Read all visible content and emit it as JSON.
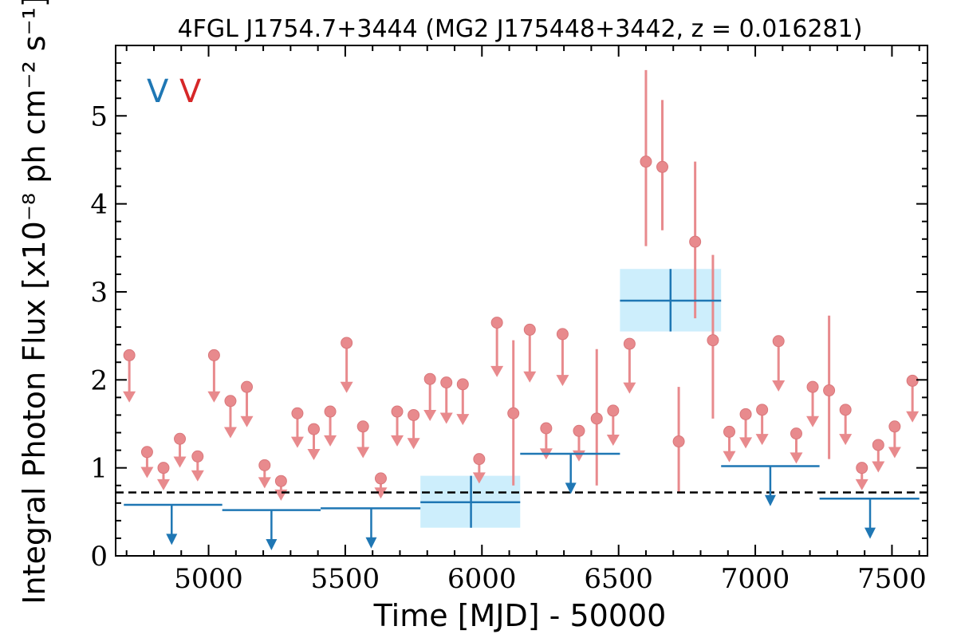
{
  "chart_data": {
    "type": "scatter",
    "title": "4FGL J1754.7+3444 (MG2 J175448+3442, z = 0.016281)",
    "xlabel": "Time [MJD] - 50000",
    "ylabel": "Integral Photon Flux [x10⁻⁸ ph cm⁻² s⁻¹]",
    "xlim": [
      4660,
      7630
    ],
    "ylim": [
      0,
      5.8
    ],
    "xticks": [
      5000,
      5500,
      6000,
      6500,
      7000,
      7500
    ],
    "yticks": [
      0,
      1,
      2,
      3,
      4,
      5
    ],
    "grid": false,
    "legend": {
      "placement": "top-left",
      "entries": [
        {
          "label": "V",
          "color": "#1f77b4"
        },
        {
          "label": "V",
          "color": "#d62728"
        }
      ]
    },
    "reference_line": {
      "y": 0.72,
      "style": "dashed",
      "color": "#000000"
    },
    "colors": {
      "yearly": "#1f77b4",
      "monthly": "#e88a8d",
      "band": "#cdeefc"
    },
    "series": [
      {
        "name": "",
        "color": "#1f77b4",
        "bins": [
          {
            "x": 4865,
            "x_lo": 4690,
            "x_hi": 5050,
            "y": 0.58,
            "upper_limit": true
          },
          {
            "x": 5230,
            "x_lo": 5050,
            "x_hi": 5410,
            "y": 0.52,
            "upper_limit": true
          },
          {
            "x": 5595,
            "x_lo": 5410,
            "x_hi": 5775,
            "y": 0.54,
            "upper_limit": true
          },
          {
            "x": 5960,
            "x_lo": 5775,
            "x_hi": 6140,
            "y": 0.61,
            "y_lo": 0.32,
            "y_hi": 0.91,
            "upper_limit": false
          },
          {
            "x": 6325,
            "x_lo": 6140,
            "x_hi": 6505,
            "y": 1.16,
            "upper_limit": true
          },
          {
            "x": 6690,
            "x_lo": 6505,
            "x_hi": 6875,
            "y": 2.9,
            "y_lo": 2.55,
            "y_hi": 3.26,
            "upper_limit": false
          },
          {
            "x": 7055,
            "x_lo": 6875,
            "x_hi": 7235,
            "y": 1.02,
            "upper_limit": true
          },
          {
            "x": 7420,
            "x_lo": 7235,
            "x_hi": 7600,
            "y": 0.65,
            "upper_limit": true
          }
        ]
      },
      {
        "name": "",
        "color": "#e88a8d",
        "points": [
          {
            "x": 4710,
            "y": 2.28,
            "upper_limit": true
          },
          {
            "x": 4775,
            "y": 1.18,
            "upper_limit": true
          },
          {
            "x": 4835,
            "y": 1.0,
            "upper_limit": true
          },
          {
            "x": 4895,
            "y": 1.33,
            "upper_limit": true
          },
          {
            "x": 4960,
            "y": 1.13,
            "upper_limit": true
          },
          {
            "x": 5020,
            "y": 2.28,
            "upper_limit": true
          },
          {
            "x": 5080,
            "y": 1.76,
            "upper_limit": true
          },
          {
            "x": 5140,
            "y": 1.92,
            "upper_limit": true
          },
          {
            "x": 5205,
            "y": 1.03,
            "upper_limit": true
          },
          {
            "x": 5265,
            "y": 0.85,
            "upper_limit": true
          },
          {
            "x": 5325,
            "y": 1.62,
            "upper_limit": true
          },
          {
            "x": 5385,
            "y": 1.44,
            "upper_limit": true
          },
          {
            "x": 5445,
            "y": 1.64,
            "upper_limit": true
          },
          {
            "x": 5505,
            "y": 2.42,
            "upper_limit": true
          },
          {
            "x": 5565,
            "y": 1.47,
            "upper_limit": true
          },
          {
            "x": 5630,
            "y": 0.88,
            "upper_limit": true
          },
          {
            "x": 5690,
            "y": 1.64,
            "upper_limit": true
          },
          {
            "x": 5750,
            "y": 1.6,
            "upper_limit": true
          },
          {
            "x": 5810,
            "y": 2.01,
            "upper_limit": true
          },
          {
            "x": 5870,
            "y": 1.97,
            "upper_limit": true
          },
          {
            "x": 5930,
            "y": 1.95,
            "upper_limit": true
          },
          {
            "x": 5990,
            "y": 1.1,
            "upper_limit": true
          },
          {
            "x": 6055,
            "y": 2.65,
            "upper_limit": true
          },
          {
            "x": 6115,
            "y": 1.62,
            "y_lo": 0.8,
            "y_hi": 2.45,
            "upper_limit": false
          },
          {
            "x": 6175,
            "y": 2.57,
            "upper_limit": true
          },
          {
            "x": 6235,
            "y": 1.45,
            "upper_limit": true
          },
          {
            "x": 6295,
            "y": 2.52,
            "upper_limit": true
          },
          {
            "x": 6355,
            "y": 1.42,
            "upper_limit": true
          },
          {
            "x": 6420,
            "y": 1.56,
            "y_lo": 0.8,
            "y_hi": 2.35,
            "upper_limit": false
          },
          {
            "x": 6480,
            "y": 1.65,
            "upper_limit": true
          },
          {
            "x": 6540,
            "y": 2.41,
            "upper_limit": true
          },
          {
            "x": 6600,
            "y": 4.48,
            "y_lo": 3.52,
            "y_hi": 5.52,
            "upper_limit": false
          },
          {
            "x": 6660,
            "y": 4.42,
            "y_lo": 3.7,
            "y_hi": 5.18,
            "upper_limit": false
          },
          {
            "x": 6720,
            "y": 1.3,
            "y_lo": 0.72,
            "y_hi": 1.92,
            "upper_limit": false
          },
          {
            "x": 6780,
            "y": 3.57,
            "y_lo": 2.7,
            "y_hi": 4.48,
            "upper_limit": false
          },
          {
            "x": 6845,
            "y": 2.45,
            "y_lo": 1.56,
            "y_hi": 3.42,
            "upper_limit": false
          },
          {
            "x": 6905,
            "y": 1.41,
            "upper_limit": true
          },
          {
            "x": 6965,
            "y": 1.61,
            "upper_limit": true
          },
          {
            "x": 7025,
            "y": 1.66,
            "upper_limit": true
          },
          {
            "x": 7085,
            "y": 2.44,
            "upper_limit": true
          },
          {
            "x": 7150,
            "y": 1.39,
            "upper_limit": true
          },
          {
            "x": 7210,
            "y": 1.92,
            "upper_limit": true
          },
          {
            "x": 7270,
            "y": 1.88,
            "y_lo": 1.1,
            "y_hi": 2.73,
            "upper_limit": false
          },
          {
            "x": 7330,
            "y": 1.66,
            "upper_limit": true
          },
          {
            "x": 7390,
            "y": 1.0,
            "upper_limit": true
          },
          {
            "x": 7450,
            "y": 1.26,
            "upper_limit": true
          },
          {
            "x": 7510,
            "y": 1.47,
            "upper_limit": true
          },
          {
            "x": 7575,
            "y": 1.99,
            "upper_limit": true
          }
        ]
      }
    ]
  }
}
